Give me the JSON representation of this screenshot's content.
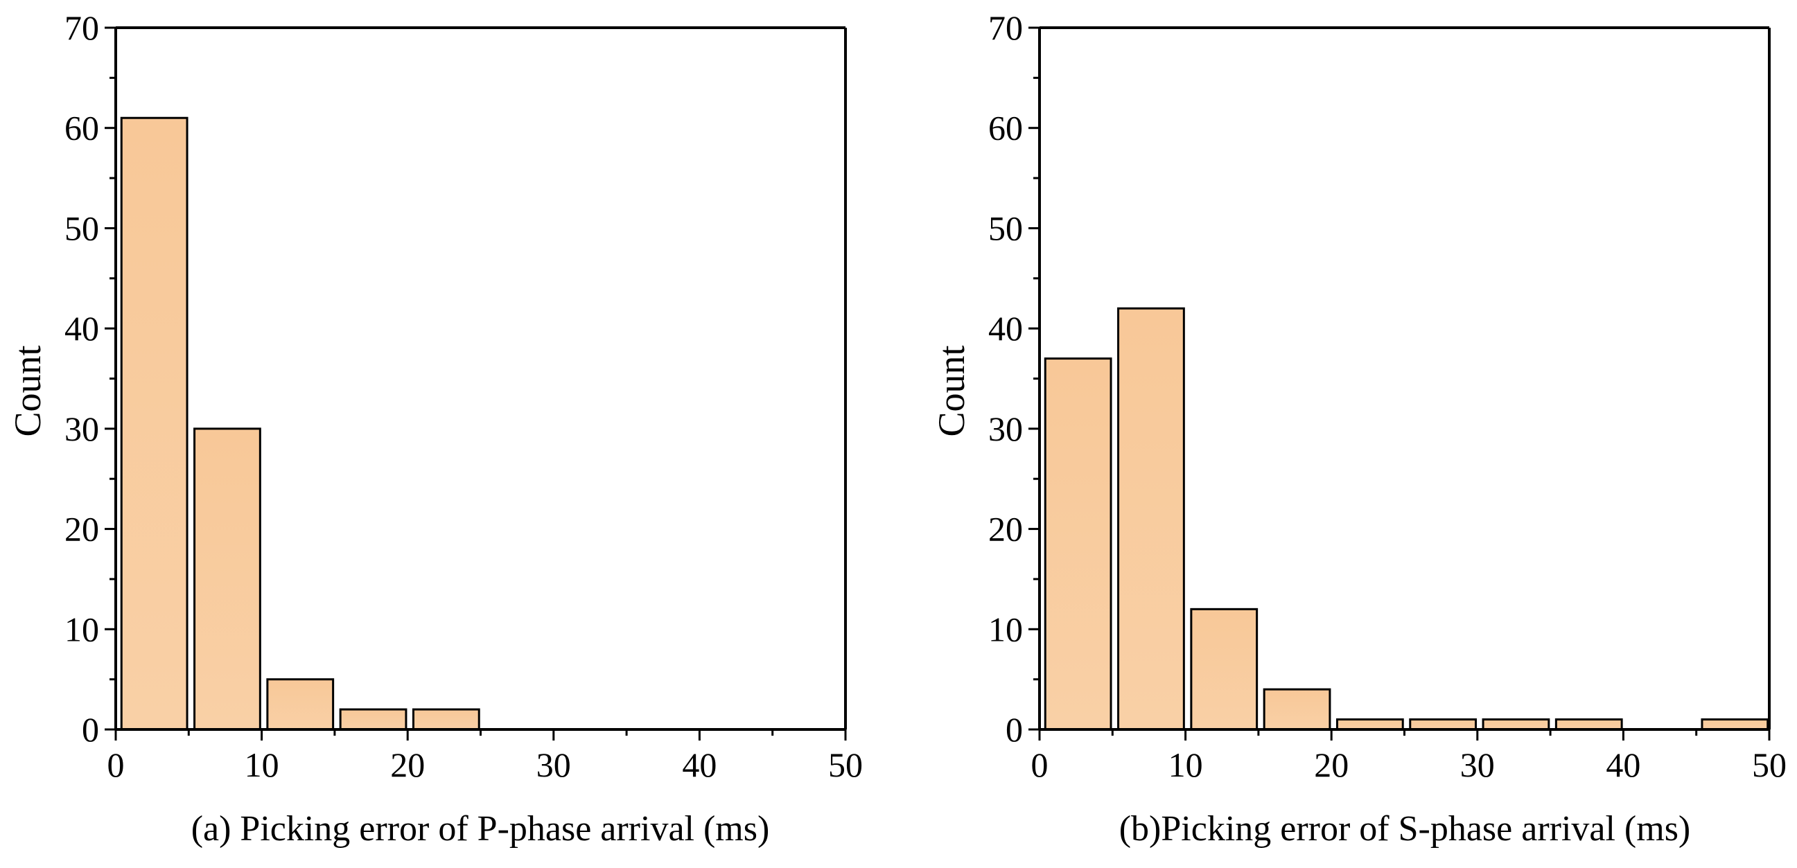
{
  "chart_data": [
    {
      "type": "bar",
      "id": "a",
      "caption": "(a) Picking error of P-phase arrival (ms)",
      "xlabel": "(a) Picking error of P-phase arrival (ms)",
      "ylabel": "Count",
      "xlim": [
        0,
        50
      ],
      "ylim": [
        0,
        70
      ],
      "xticks": [
        0,
        10,
        20,
        30,
        40,
        50
      ],
      "yticks": [
        0,
        10,
        20,
        30,
        40,
        50,
        60,
        70
      ],
      "bin_width": 5,
      "bins": [
        {
          "start": 0,
          "end": 5,
          "count": 61
        },
        {
          "start": 5,
          "end": 10,
          "count": 30
        },
        {
          "start": 10,
          "end": 15,
          "count": 5
        },
        {
          "start": 15,
          "end": 20,
          "count": 2
        },
        {
          "start": 20,
          "end": 25,
          "count": 2
        },
        {
          "start": 25,
          "end": 30,
          "count": 0
        },
        {
          "start": 30,
          "end": 35,
          "count": 0
        },
        {
          "start": 35,
          "end": 40,
          "count": 0
        },
        {
          "start": 40,
          "end": 45,
          "count": 0
        },
        {
          "start": 45,
          "end": 50,
          "count": 0
        }
      ],
      "grid": false,
      "legend": "none"
    },
    {
      "type": "bar",
      "id": "b",
      "caption": "(b)Picking error of S-phase arrival (ms)",
      "xlabel": "(b)Picking error of S-phase arrival (ms)",
      "ylabel": "Count",
      "xlim": [
        0,
        50
      ],
      "ylim": [
        0,
        70
      ],
      "xticks": [
        0,
        10,
        20,
        30,
        40,
        50
      ],
      "yticks": [
        0,
        10,
        20,
        30,
        40,
        50,
        60,
        70
      ],
      "bin_width": 5,
      "bins": [
        {
          "start": 0,
          "end": 5,
          "count": 37
        },
        {
          "start": 5,
          "end": 10,
          "count": 42
        },
        {
          "start": 10,
          "end": 15,
          "count": 12
        },
        {
          "start": 15,
          "end": 20,
          "count": 4
        },
        {
          "start": 20,
          "end": 25,
          "count": 1
        },
        {
          "start": 25,
          "end": 30,
          "count": 1
        },
        {
          "start": 30,
          "end": 35,
          "count": 1
        },
        {
          "start": 35,
          "end": 40,
          "count": 1
        },
        {
          "start": 40,
          "end": 45,
          "count": 0
        },
        {
          "start": 45,
          "end": 50,
          "count": 1
        }
      ],
      "grid": false,
      "legend": "none"
    }
  ],
  "colors": {
    "bar_fill_top": "#f8c898",
    "bar_fill_bottom": "#f9d0a6",
    "bar_stroke": "#000000",
    "axis": "#000000",
    "background": "#ffffff"
  }
}
